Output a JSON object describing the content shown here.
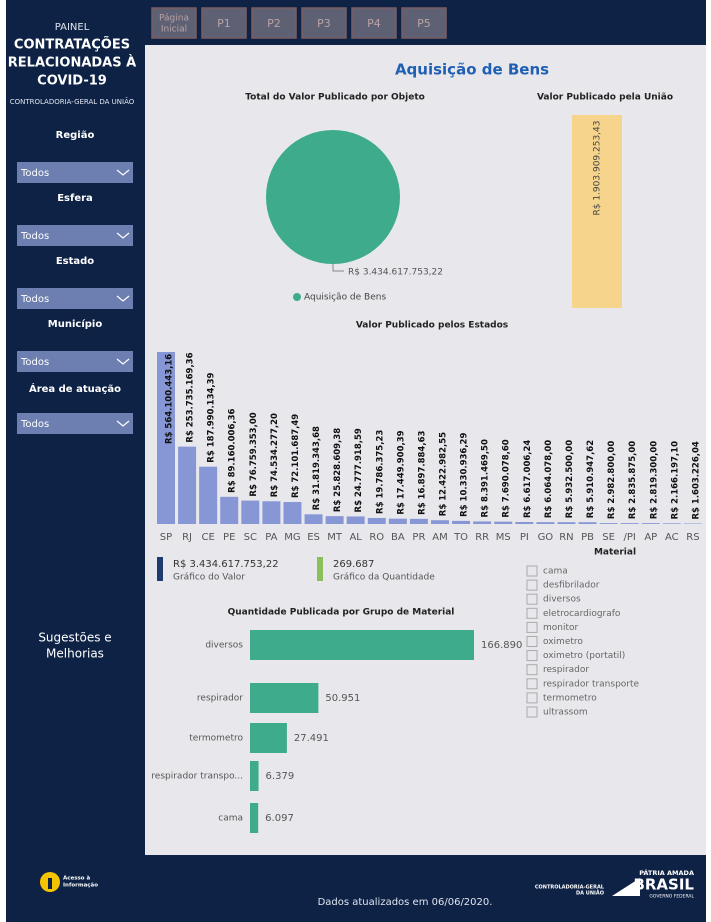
{
  "nav": {
    "buttons": [
      [
        "Página",
        "Inicial"
      ],
      [
        "P1"
      ],
      [
        "P2"
      ],
      [
        "P3"
      ],
      [
        "P4"
      ],
      [
        "P5"
      ]
    ]
  },
  "sidebar": {
    "kicker": "PAINEL",
    "title_lines": [
      "CONTRATAÇÕES",
      "RELACIONADAS À",
      "COVID-19"
    ],
    "org": "CONTROLADORIA-GERAL DA UNIÃO",
    "filters": [
      {
        "label": "Região",
        "value": "Todos"
      },
      {
        "label": "Esfera",
        "value": "Todos"
      },
      {
        "label": "Estado",
        "value": "Todos"
      },
      {
        "label": "Município",
        "value": "Todos"
      },
      {
        "label": "Área de atuação",
        "value": "Todos"
      }
    ],
    "suggestions_lines": [
      "Sugestões e",
      "Melhorias"
    ]
  },
  "title": "Aquisição de Bens",
  "pie_chart": {
    "type": "pie",
    "title": "Total do Valor Publicado por Objeto",
    "categories": [
      "Aquisição de Bens"
    ],
    "values": [
      3434617753.22
    ],
    "value_labels": [
      "R$ 3.434.617.753,22"
    ],
    "color": "#3dab8c"
  },
  "union_chart": {
    "type": "bar",
    "title": "Valor Publicado pela União",
    "values": [
      1903909253.43
    ],
    "value_labels": [
      "R$ 1.903.909.253,43"
    ],
    "color": "#f7d48c"
  },
  "states_chart": {
    "type": "bar",
    "title": "Valor Publicado pelos Estados",
    "color": "#8797d5",
    "categories": [
      "SP",
      "RJ",
      "CE",
      "PE",
      "SC",
      "PA",
      "MG",
      "ES",
      "MT",
      "AL",
      "RO",
      "BA",
      "PR",
      "AM",
      "TO",
      "RR",
      "MS",
      "PI",
      "GO",
      "RN",
      "PB",
      "SE",
      "/PI",
      "AP",
      "AC",
      "RS"
    ],
    "values": [
      564100443.16,
      253735169.36,
      187990134.39,
      89160006.36,
      76759353.0,
      74534277.2,
      72101687.49,
      31819343.68,
      25828609.38,
      24777918.59,
      19786375.23,
      17449900.39,
      16897884.63,
      12422982.55,
      10330936.29,
      8391469.5,
      7690078.6,
      6617006.24,
      6064078.0,
      5932500.0,
      5910947.62,
      2982800.0,
      2835875.0,
      2819300.0,
      2166197.1,
      1603226.04
    ],
    "value_labels": [
      "R$ 564.100.443,16",
      "R$ 253.735.169,36",
      "R$ 187.990.134,39",
      "R$ 89.160.006,36",
      "R$ 76.759.353,00",
      "R$ 74.534.277,20",
      "R$ 72.101.687,49",
      "R$ 31.819.343,68",
      "R$ 25.828.609,38",
      "R$ 24.777.918,59",
      "R$ 19.786.375,23",
      "R$ 17.449.900,39",
      "R$ 16.897.884,63",
      "R$ 12.422.982,55",
      "R$ 10.330.936,29",
      "R$ 8.391.469,50",
      "R$ 7.690.078,60",
      "R$ 6.617.006,24",
      "R$ 6.064.078,00",
      "R$ 5.932.500,00",
      "R$ 5.910.947,62",
      "R$ 2.982.800,00",
      "R$ 2.835.875,00",
      "R$ 2.819.300,00",
      "R$ 2.166.197,10",
      "R$ 1.603.226,04"
    ]
  },
  "cards": [
    {
      "value": "R$ 3.434.617.753,22",
      "caption": "Gráfico do Valor",
      "color": "#1f3a6e"
    },
    {
      "value": "269.687",
      "caption": "Gráfico da Quantidade",
      "color": "#8cbf5c"
    }
  ],
  "material_slicer": {
    "title": "Material",
    "items": [
      "cama",
      "desfibrilador",
      "diversos",
      "eletrocardiografo",
      "monitor",
      "oximetro",
      "oximetro (portatil)",
      "respirador",
      "respirador transporte",
      "termometro",
      "ultrassom"
    ]
  },
  "material_chart": {
    "type": "bar",
    "orientation": "horizontal",
    "title": "Quantidade Publicada por Grupo de Material",
    "color": "#3dab8c",
    "categories": [
      "diversos",
      "respirador",
      "termometro",
      "respirador transpo...",
      "cama"
    ],
    "values": [
      166890,
      50951,
      27491,
      6379,
      6097
    ],
    "value_labels": [
      "166.890",
      "50.951",
      "27.491",
      "6.379",
      "6.097"
    ]
  },
  "footer": {
    "updated": "Dados atualizados em 06/06/2020.",
    "access_lines": [
      "Acesso à",
      "Informação"
    ],
    "cgu_lines": [
      "CONTROLADORIA-GERAL",
      "DA UNIÃO"
    ],
    "brand_lines": [
      "PÁTRIA AMADA",
      "BRASIL",
      "GOVERNO FEDERAL"
    ]
  }
}
